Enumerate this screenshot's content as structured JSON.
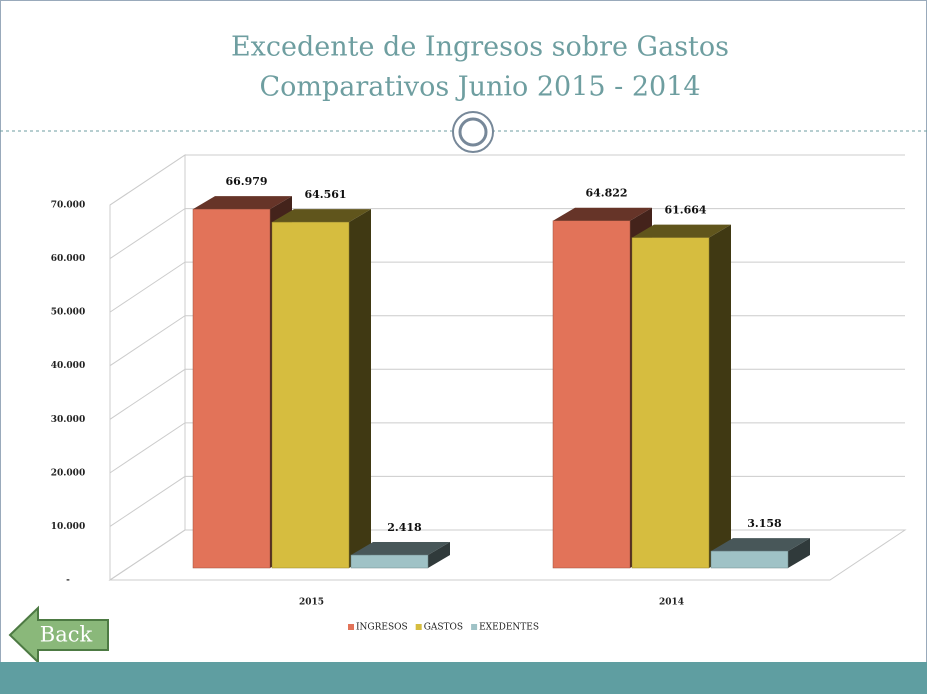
{
  "chart_data": {
    "type": "bar3d",
    "title": "Excedente de Ingresos sobre Gastos",
    "subtitle": "Comparativos Junio 2015  -  2014",
    "categories": [
      "2015",
      "2014"
    ],
    "series": [
      {
        "name": "INGRESOS",
        "color": "#e27359",
        "values": [
          66979,
          64822
        ],
        "value_labels": [
          "66.979",
          "64.822"
        ]
      },
      {
        "name": "GASTOS",
        "color": "#d6bd3f",
        "values": [
          64561,
          61664
        ],
        "value_labels": [
          "64.561",
          "61.664"
        ]
      },
      {
        "name": "EXEDENTES",
        "color": "#9fc2c6",
        "values": [
          2418,
          3158
        ],
        "value_labels": [
          "2.418",
          "3.158"
        ]
      }
    ],
    "ylim": [
      0,
      70000
    ],
    "yticks": [
      {
        "value": 0,
        "label": "-"
      },
      {
        "value": 10000,
        "label": "10.000"
      },
      {
        "value": 20000,
        "label": "20.000"
      },
      {
        "value": 30000,
        "label": "30.000"
      },
      {
        "value": 40000,
        "label": "40.000"
      },
      {
        "value": 50000,
        "label": "50.000"
      },
      {
        "value": 60000,
        "label": "60.000"
      },
      {
        "value": 70000,
        "label": "70.000"
      }
    ],
    "grid": true,
    "legend": "bottom"
  },
  "back_button": "Back"
}
